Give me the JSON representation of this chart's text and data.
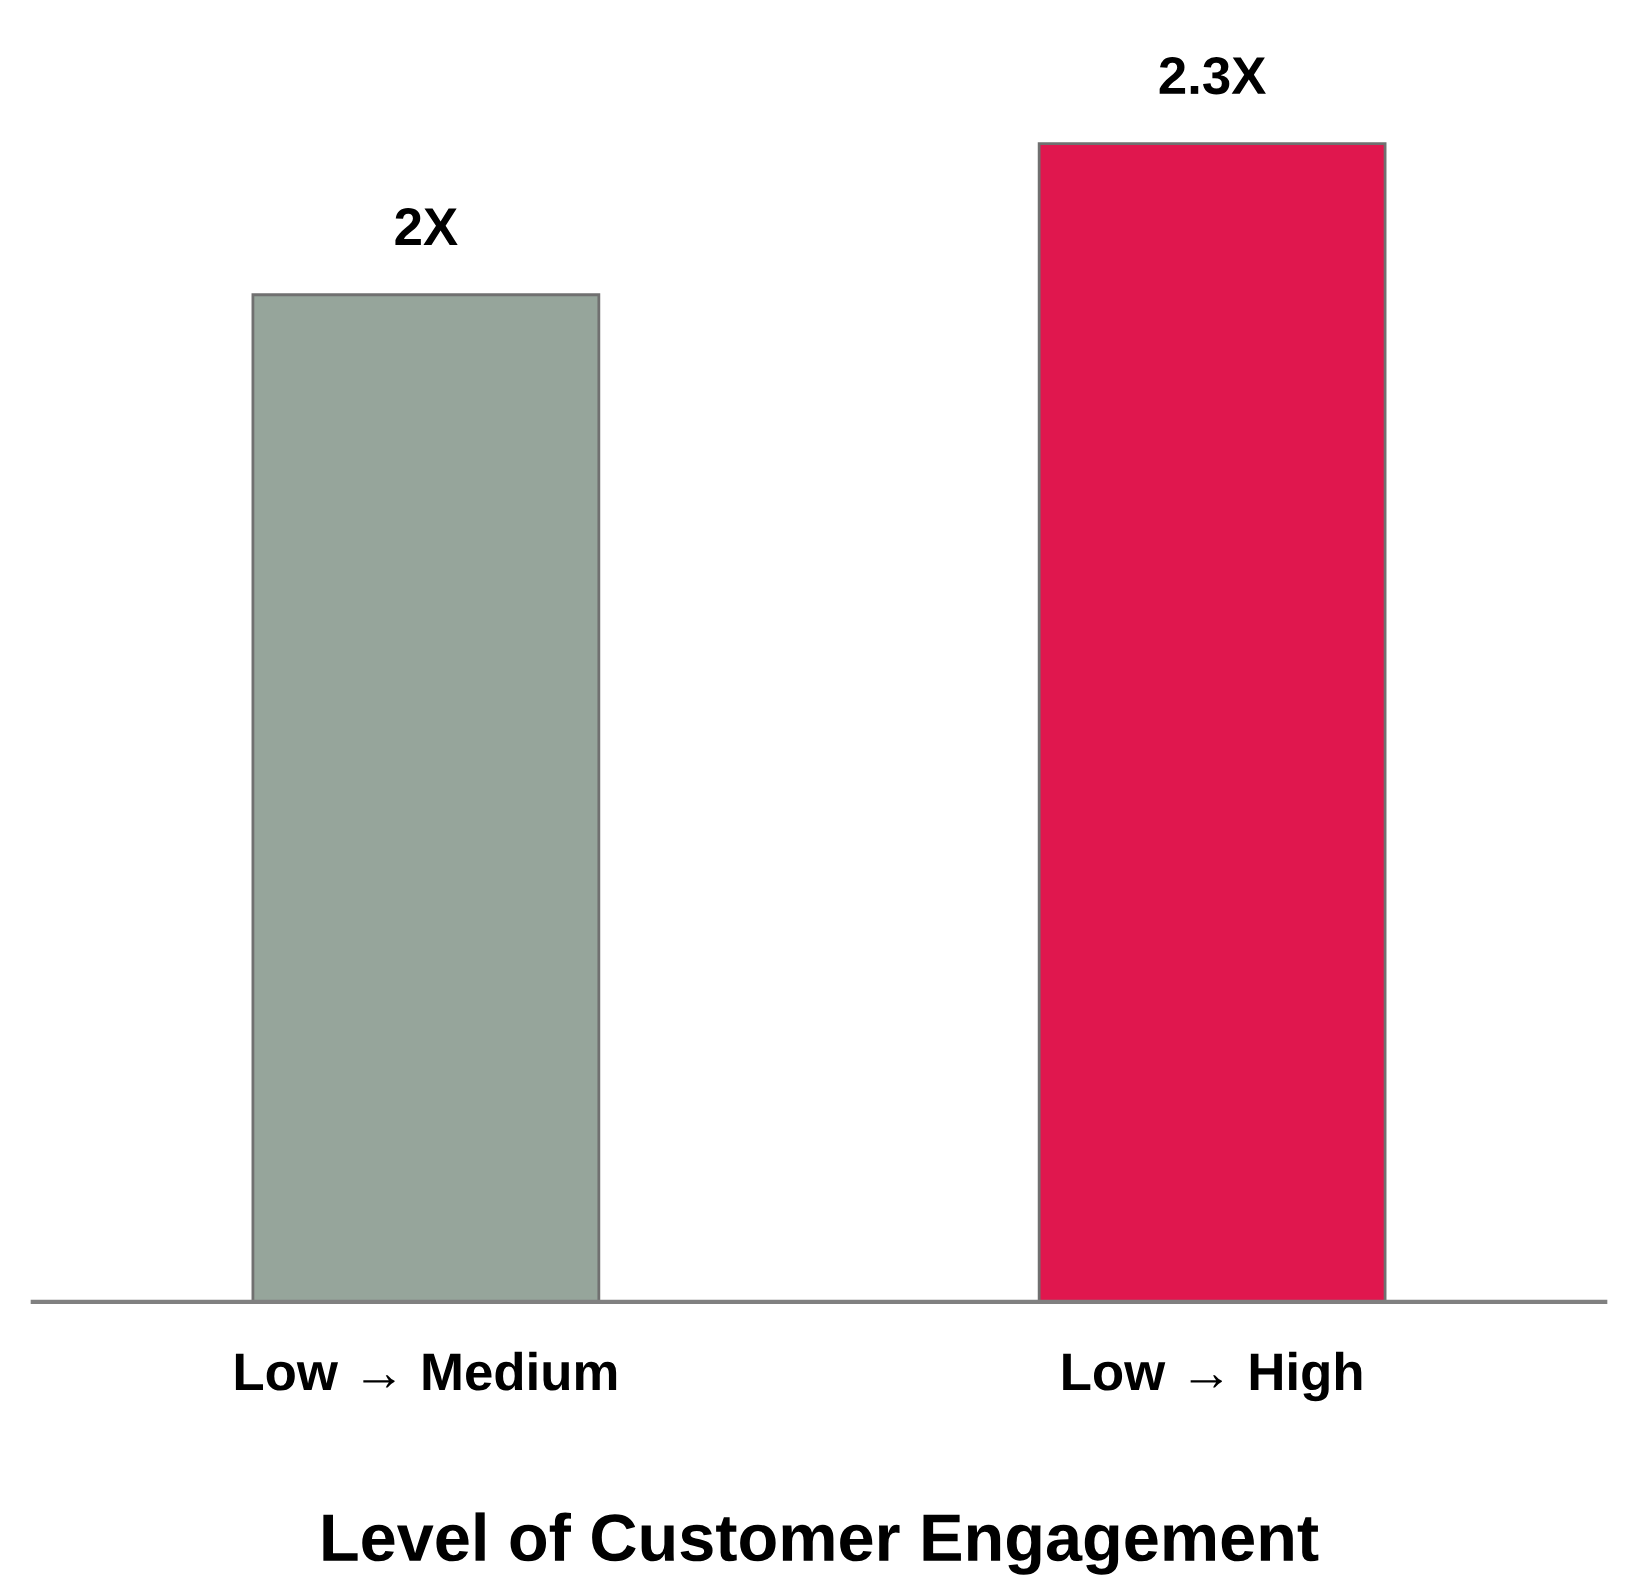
{
  "chart_data": {
    "type": "bar",
    "categories": [
      "Low → Medium",
      "Low → High"
    ],
    "values": [
      2,
      2.3
    ],
    "colors": [
      "#96a59b",
      "#e0174e"
    ],
    "value_labels": [
      "2X",
      "2.3X"
    ],
    "xlabel": "Level of Customer Engagement"
  }
}
